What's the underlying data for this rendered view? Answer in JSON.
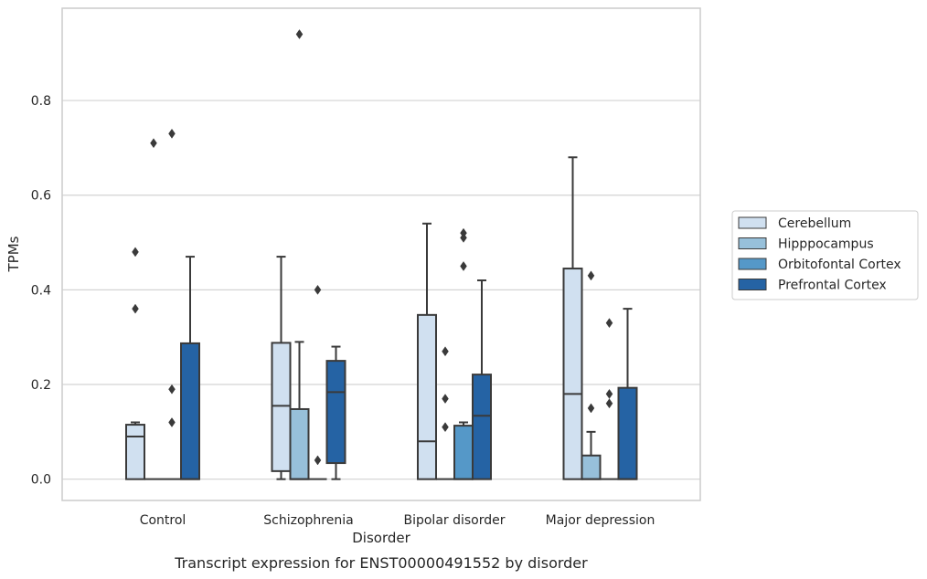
{
  "chart_data": {
    "type": "box",
    "caption": "Transcript expression for ENST00000491552 by disorder",
    "xlabel": "Disorder",
    "ylabel": "TPMs",
    "ylim": [
      -0.045,
      0.995
    ],
    "yticks": [
      0.0,
      0.2,
      0.4,
      0.6,
      0.8
    ],
    "ytick_labels": [
      "0.0",
      "0.2",
      "0.4",
      "0.6",
      "0.8"
    ],
    "grid": "horizontal",
    "legend_position": "right",
    "categories": [
      "Control",
      "Schizophrenia",
      "Bipolar disorder",
      "Major depression"
    ],
    "series": [
      {
        "name": "Cerebellum",
        "color": "#d0e0f0",
        "boxes": [
          {
            "q1": 0.0,
            "median": 0.09,
            "q3": 0.115,
            "whisker_low": 0.0,
            "whisker_high": 0.12,
            "outliers": [
              0.36,
              0.48
            ]
          },
          {
            "q1": 0.017,
            "median": 0.155,
            "q3": 0.288,
            "whisker_low": 0.0,
            "whisker_high": 0.47,
            "outliers": []
          },
          {
            "q1": 0.0,
            "median": 0.08,
            "q3": 0.347,
            "whisker_low": 0.0,
            "whisker_high": 0.54,
            "outliers": []
          },
          {
            "q1": 0.0,
            "median": 0.18,
            "q3": 0.445,
            "whisker_low": 0.0,
            "whisker_high": 0.68,
            "outliers": []
          }
        ]
      },
      {
        "name": "Hipppocampus",
        "color": "#97c0da",
        "boxes": [
          {
            "q1": 0.0,
            "median": 0.0,
            "q3": 0.0,
            "whisker_low": 0.0,
            "whisker_high": 0.0,
            "outliers": [
              0.71
            ]
          },
          {
            "q1": 0.0,
            "median": 0.0,
            "q3": 0.148,
            "whisker_low": 0.0,
            "whisker_high": 0.29,
            "outliers": [
              0.94
            ]
          },
          {
            "q1": 0.0,
            "median": 0.0,
            "q3": 0.0,
            "whisker_low": 0.0,
            "whisker_high": 0.0,
            "outliers": [
              0.11,
              0.17,
              0.27
            ]
          },
          {
            "q1": 0.0,
            "median": 0.0,
            "q3": 0.05,
            "whisker_low": 0.0,
            "whisker_high": 0.1,
            "outliers": [
              0.15,
              0.43
            ]
          }
        ]
      },
      {
        "name": "Orbitofontal Cortex",
        "color": "#5598c8",
        "boxes": [
          {
            "q1": 0.0,
            "median": 0.0,
            "q3": 0.0,
            "whisker_low": 0.0,
            "whisker_high": 0.0,
            "outliers": [
              0.12,
              0.19,
              0.73
            ]
          },
          {
            "q1": 0.0,
            "median": 0.0,
            "q3": 0.0,
            "whisker_low": 0.0,
            "whisker_high": 0.0,
            "outliers": [
              0.04,
              0.4
            ]
          },
          {
            "q1": 0.0,
            "median": 0.0,
            "q3": 0.113,
            "whisker_low": 0.0,
            "whisker_high": 0.12,
            "outliers": [
              0.45,
              0.51,
              0.52
            ]
          },
          {
            "q1": 0.0,
            "median": 0.0,
            "q3": 0.0,
            "whisker_low": 0.0,
            "whisker_high": 0.0,
            "outliers": [
              0.16,
              0.18,
              0.33
            ]
          }
        ]
      },
      {
        "name": "Prefrontal Cortex",
        "color": "#2563a4",
        "boxes": [
          {
            "q1": 0.0,
            "median": 0.0,
            "q3": 0.287,
            "whisker_low": 0.0,
            "whisker_high": 0.47,
            "outliers": []
          },
          {
            "q1": 0.034,
            "median": 0.184,
            "q3": 0.25,
            "whisker_low": 0.0,
            "whisker_high": 0.28,
            "outliers": []
          },
          {
            "q1": 0.0,
            "median": 0.134,
            "q3": 0.221,
            "whisker_low": 0.0,
            "whisker_high": 0.42,
            "outliers": []
          },
          {
            "q1": 0.0,
            "median": 0.0,
            "q3": 0.193,
            "whisker_low": 0.0,
            "whisker_high": 0.36,
            "outliers": []
          }
        ]
      }
    ]
  }
}
